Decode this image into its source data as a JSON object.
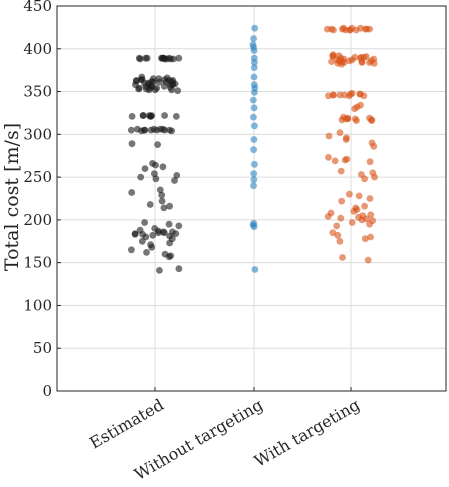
{
  "chart_data": {
    "type": "scatter",
    "style": "jittered strip plot",
    "ylabel": "Total cost [m/s]",
    "ylim": [
      0,
      450
    ],
    "yticks": [
      0,
      50,
      100,
      150,
      200,
      250,
      300,
      350,
      400,
      450
    ],
    "categories": [
      "Estimated",
      "Without targeting",
      "With targeting"
    ],
    "grid": true,
    "legend": "none",
    "series": [
      {
        "category": "Estimated",
        "color": "#1a1a1a",
        "values": [
          389,
          389,
          389,
          389,
          389,
          389,
          389,
          388,
          388,
          388,
          388,
          389,
          389,
          388,
          365,
          364,
          364,
          363,
          363,
          362,
          362,
          361,
          361,
          360,
          360,
          359,
          359,
          358,
          357,
          356,
          355,
          354,
          353,
          353,
          352,
          352,
          351,
          365,
          366,
          367,
          362,
          360,
          358,
          356,
          354,
          352,
          364,
          363,
          361,
          358,
          356,
          354,
          322,
          322,
          322,
          321,
          321,
          321,
          322,
          321,
          322,
          306,
          306,
          305,
          305,
          305,
          305,
          304,
          305,
          306,
          305,
          304,
          306,
          305,
          289,
          288,
          266,
          264,
          262,
          260,
          254,
          252,
          250,
          248,
          246,
          235,
          232,
          229,
          222,
          218,
          216,
          214,
          197,
          195,
          193,
          190,
          188,
          187,
          186,
          186,
          185,
          185,
          184,
          184,
          183,
          183,
          182,
          181,
          180,
          178,
          175,
          173,
          171,
          168,
          165,
          162,
          160,
          158,
          157,
          143,
          141
        ]
      },
      {
        "category": "Without targeting",
        "color": "#2E86C1",
        "values": [
          424,
          412,
          405,
          402,
          398,
          389,
          384,
          378,
          367,
          358,
          354,
          349,
          340,
          331,
          320,
          310,
          294,
          282,
          265,
          254,
          247,
          240,
          196,
          194,
          192,
          142
        ]
      },
      {
        "category": "With targeting",
        "color": "#D95319",
        "values": [
          424,
          424,
          423,
          423,
          423,
          422,
          422,
          422,
          423,
          424,
          423,
          422,
          422,
          423,
          393,
          392,
          391,
          390,
          390,
          389,
          388,
          387,
          386,
          386,
          385,
          385,
          384,
          384,
          383,
          383,
          392,
          390,
          388,
          386,
          384,
          382,
          391,
          389,
          387,
          385,
          348,
          347,
          347,
          346,
          346,
          345,
          345,
          346,
          347,
          345,
          346,
          334,
          332,
          330,
          320,
          319,
          318,
          318,
          317,
          317,
          316,
          316,
          318,
          319,
          302,
          298,
          296,
          294,
          290,
          286,
          273,
          271,
          270,
          269,
          268,
          257,
          255,
          253,
          250,
          248,
          230,
          228,
          225,
          222,
          216,
          214,
          212,
          210,
          208,
          206,
          205,
          204,
          203,
          202,
          201,
          200,
          199,
          197,
          195,
          193,
          185,
          182,
          180,
          178,
          175,
          156,
          153
        ]
      }
    ]
  }
}
